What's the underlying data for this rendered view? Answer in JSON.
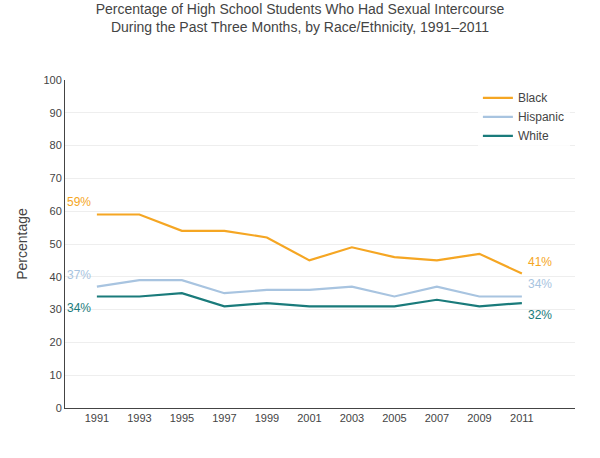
{
  "chart_data": {
    "type": "line",
    "title": "Percentage of High School Students Who Had Sexual Intercourse",
    "subtitle": "During the Past Three Months, by Race/Ethnicity, 1991–2011",
    "ylabel": "Percentage",
    "x": [
      1991,
      1993,
      1995,
      1997,
      1999,
      2001,
      2003,
      2005,
      2007,
      2009,
      2011
    ],
    "series": [
      {
        "name": "Black",
        "color": "#F5A623",
        "values": [
          59,
          59,
          54,
          54,
          52,
          45,
          49,
          46,
          45,
          47,
          41
        ]
      },
      {
        "name": "Hispanic",
        "color": "#A8C4E0",
        "values": [
          37,
          39,
          39,
          35,
          36,
          36,
          37,
          34,
          37,
          34,
          34
        ]
      },
      {
        "name": "White",
        "color": "#1A7B7B",
        "values": [
          34,
          34,
          35,
          31,
          32,
          31,
          31,
          31,
          33,
          31,
          32
        ]
      }
    ],
    "xlim": [
      1989.5,
      2013.5
    ],
    "xticks": [
      1991,
      1993,
      1995,
      1997,
      1999,
      2001,
      2003,
      2005,
      2007,
      2009,
      2011
    ],
    "ylim": [
      0,
      100
    ],
    "yticks": [
      0,
      10,
      20,
      30,
      40,
      50,
      60,
      70,
      80,
      90,
      100
    ],
    "grid": "y",
    "legend": "upper right",
    "annotations": [
      {
        "text": "59%",
        "x": 1991,
        "y": 59,
        "series": "Black"
      },
      {
        "text": "37%",
        "x": 1991,
        "y": 37,
        "series": "Hispanic"
      },
      {
        "text": "34%",
        "x": 1991,
        "y": 34,
        "series": "White"
      },
      {
        "text": "41%",
        "x": 2011,
        "y": 41,
        "series": "Black"
      },
      {
        "text": "34%",
        "x": 2011,
        "y": 34,
        "series": "Hispanic"
      },
      {
        "text": "32%",
        "x": 2011,
        "y": 32,
        "series": "White"
      }
    ]
  }
}
